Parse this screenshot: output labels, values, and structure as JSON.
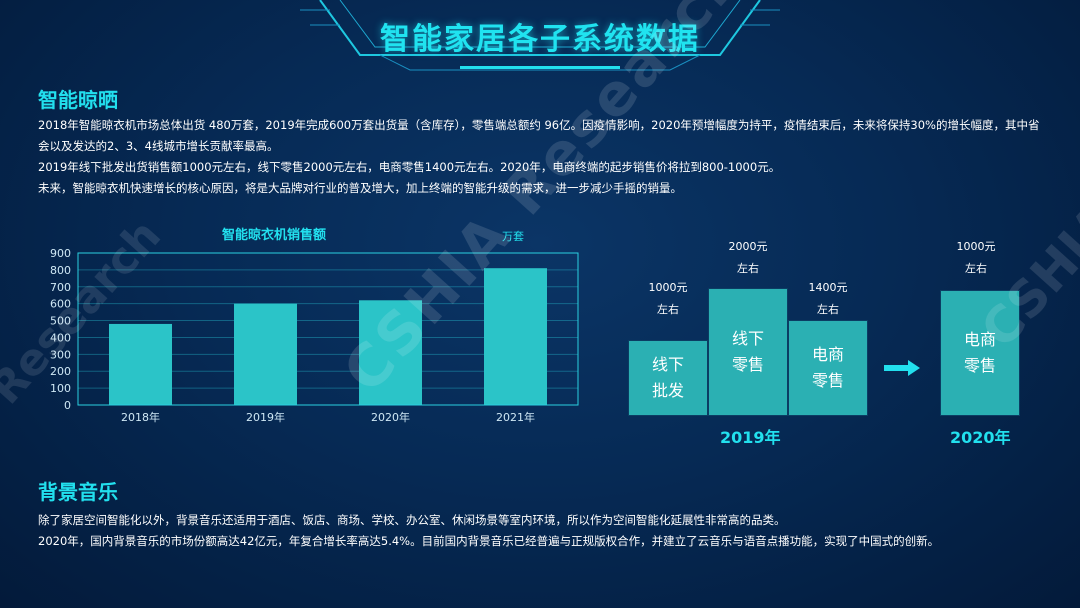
{
  "page": {
    "title": "智能家居各子系统数据"
  },
  "section1": {
    "title": "智能晾晒",
    "paragraphs": [
      "2018年智能晾衣机市场总体出货 480万套，2019年完成600万套出货量（含库存），零售端总额约 96亿。因疫情影响，2020年预增幅度为持平，疫情结束后，未来将保持30%的增长幅度，其中省会以及发达的2、3、4线城市增长贡献率最高。",
      "2019年线下批发出货销售额1000元左右，线下零售2000元左右，电商零售1400元左右。2020年，电商终端的起步销售价将拉到800-1000元。",
      "未来，智能晾衣机快速增长的核心原因，将是大品牌对行业的普及增大，加上终端的智能升级的需求，进一步减少手摇的销量。"
    ]
  },
  "chart_data": {
    "type": "bar",
    "title": "智能晾衣机销售额",
    "unit": "万套",
    "categories": [
      "2018年",
      "2019年",
      "2020年",
      "2021年"
    ],
    "values": [
      480,
      600,
      620,
      810
    ],
    "yticks": [
      "0",
      "100",
      "200",
      "300",
      "400",
      "500",
      "600",
      "700",
      "800",
      "900"
    ],
    "ylim": [
      0,
      900
    ],
    "bar_color": "#2bc4c8"
  },
  "flow": {
    "year_2019": "2019年",
    "year_2020": "2020年",
    "boxes": [
      {
        "line1": "线下",
        "line2": "批发",
        "price": "1000元",
        "approx": "左右"
      },
      {
        "line1": "线下",
        "line2": "零售",
        "price": "2000元",
        "approx": "左右"
      },
      {
        "line1": "电商",
        "line2": "零售",
        "price": "1400元",
        "approx": "左右"
      },
      {
        "line1": "电商",
        "line2": "零售",
        "price": "1000元",
        "approx": "左右"
      }
    ]
  },
  "section2": {
    "title": "背景音乐",
    "paragraphs": [
      "除了家居空间智能化以外，背景音乐还适用于酒店、饭店、商场、学校、办公室、休闲场景等室内环境，所以作为空间智能化延展性非常高的品类。",
      "2020年，国内背景音乐的市场份额高达42亿元，年复合增长率高达5.4%。目前国内背景音乐已经普遍与正规版权合作，并建立了云音乐与语音点播功能，实现了中国式的创新。"
    ]
  },
  "watermark": {
    "text": "CSHIA Research",
    "text_left": "Research",
    "text_right": "CSHIA"
  }
}
